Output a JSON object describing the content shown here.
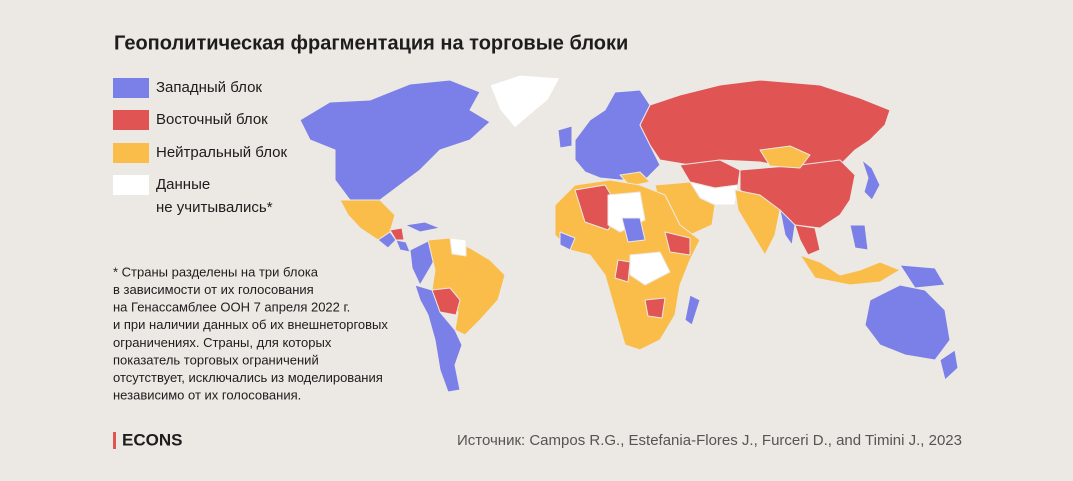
{
  "header": {
    "title": "Геополитическая фрагментация на торговые блоки"
  },
  "legend": {
    "items": [
      {
        "label": "Западный блок",
        "color": "#7b7fe8"
      },
      {
        "label": "Восточный блок",
        "color": "#e05454"
      },
      {
        "label": "Нейтральный блок",
        "color": "#fbbd4a"
      },
      {
        "label_lines": [
          "Данные",
          "не учитывались*"
        ],
        "color": "#ffffff"
      }
    ]
  },
  "footnote": {
    "lines": [
      "* Страны разделены на три блока",
      "в зависимости от их голосования",
      "на Генассамблее ООН 7 апреля 2022 г.",
      "и при наличии данных об их внешнеторговых",
      "ограничениях. Страны, для которых",
      "показатель торговых ограничений",
      "отсутствует, исключались из моделирования",
      "независимо от их голосования."
    ]
  },
  "footer": {
    "logo": "ECONS",
    "source": "Источник: Campos R.G., Estefania-Flores J., Furceri D., and Timini J., 2023"
  }
}
